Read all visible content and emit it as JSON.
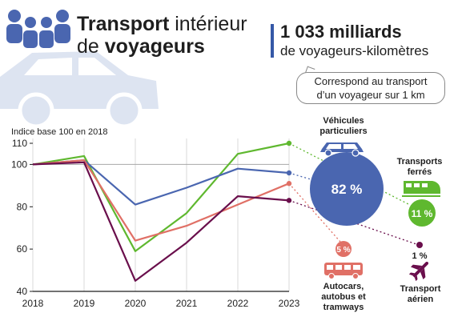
{
  "header": {
    "title_bold_1": "Transport",
    "title_normal_1": " intérieur",
    "title_normal_2": "de ",
    "title_bold_2": "voyageurs"
  },
  "stat": {
    "value": "1 033 milliards",
    "unit": "de voyageurs-kilomètres",
    "note_line1": "Correspond au transport",
    "note_line2": "d’un voyageur sur 1 km"
  },
  "chart_data": {
    "type": "line",
    "ylabel": "Indice base 100 en 2018",
    "x": [
      2018,
      2019,
      2020,
      2021,
      2022,
      2023
    ],
    "ylim": [
      40,
      110
    ],
    "yticks": [
      40,
      60,
      80,
      100,
      110
    ],
    "reference_line": 100,
    "series": [
      {
        "key": "green",
        "color": "#5fb82f",
        "values": [
          100,
          104,
          59,
          77,
          105,
          110
        ]
      },
      {
        "key": "blue",
        "color": "#4a66b0",
        "values": [
          100,
          102,
          81,
          89,
          98,
          96
        ]
      },
      {
        "key": "red",
        "color": "#e07066",
        "values": [
          100,
          102,
          64,
          71,
          81,
          91
        ]
      },
      {
        "key": "purple",
        "color": "#6a0f4c",
        "values": [
          100,
          101,
          45,
          63,
          85,
          83
        ]
      }
    ]
  },
  "shares": {
    "cars": {
      "label_1": "Véhicules",
      "label_2": "particuliers",
      "value": "82 %",
      "color": "#4a66b0"
    },
    "rail": {
      "label_1": "Transports",
      "label_2": "ferrés",
      "value": "11 %",
      "color": "#5fb82f"
    },
    "bus": {
      "label_1": "Autocars,",
      "label_2": "autobus et",
      "label_3": "tramways",
      "value": "5 %",
      "color": "#e07066"
    },
    "air": {
      "label_1": "Transport",
      "label_2": "aérien",
      "value": "1 %",
      "color": "#6a0f4c"
    }
  },
  "icons": [
    "people-icon",
    "car-icon",
    "train-icon",
    "bus-icon",
    "plane-icon"
  ]
}
